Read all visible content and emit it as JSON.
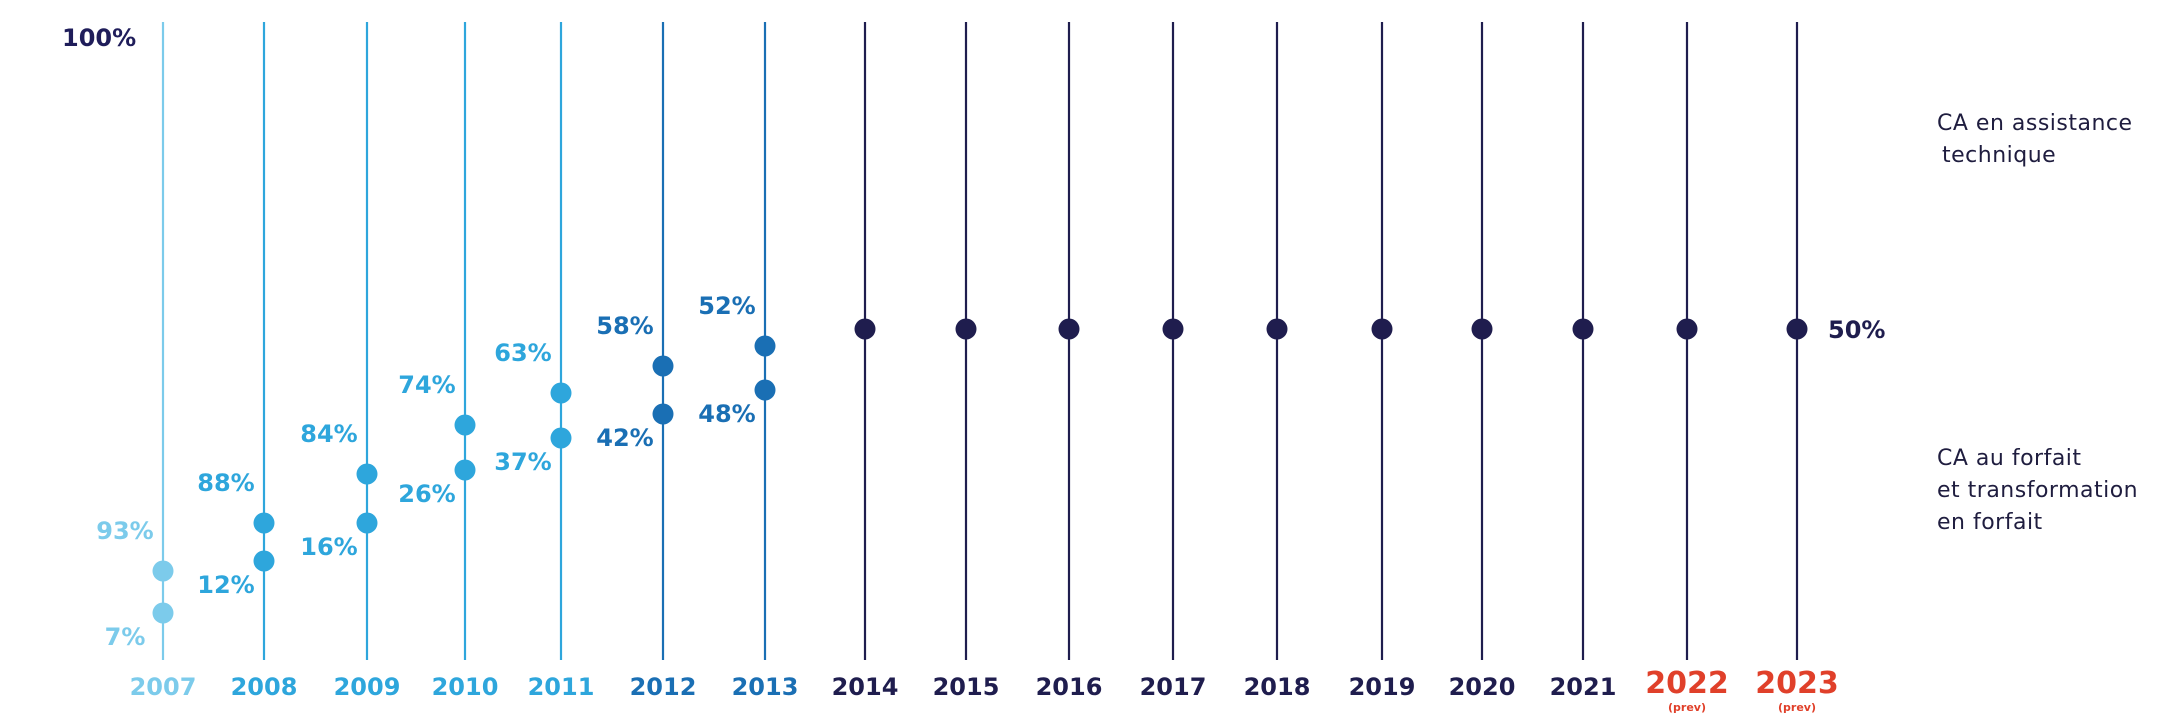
{
  "chart_data": {
    "type": "scatter",
    "top_label": "100%",
    "years": [
      {
        "label": "2007",
        "sub": "",
        "color": "#7ccbeb",
        "upper": 93,
        "lower": 7
      },
      {
        "label": "2008",
        "sub": "",
        "color": "#2ea6dc",
        "upper": 88,
        "lower": 12
      },
      {
        "label": "2009",
        "sub": "",
        "color": "#2ea6dc",
        "upper": 84,
        "lower": 16
      },
      {
        "label": "2010",
        "sub": "",
        "color": "#2ea6dc",
        "upper": 74,
        "lower": 26
      },
      {
        "label": "2011",
        "sub": "",
        "color": "#2ea6dc",
        "upper": 63,
        "lower": 37
      },
      {
        "label": "2012",
        "sub": "",
        "color": "#1a6fb4",
        "upper": 58,
        "lower": 42
      },
      {
        "label": "2013",
        "sub": "",
        "color": "#1a6fb4",
        "upper": 52,
        "lower": 48
      },
      {
        "label": "2014",
        "sub": "",
        "color": "#1f1d4e",
        "point": 50
      },
      {
        "label": "2015",
        "sub": "",
        "color": "#1f1d4e",
        "point": 50
      },
      {
        "label": "2016",
        "sub": "",
        "color": "#1f1d4e",
        "point": 50
      },
      {
        "label": "2017",
        "sub": "",
        "color": "#1f1d4e",
        "point": 50
      },
      {
        "label": "2018",
        "sub": "",
        "color": "#1f1d4e",
        "point": 50
      },
      {
        "label": "2019",
        "sub": "",
        "color": "#1f1d4e",
        "point": 50
      },
      {
        "label": "2020",
        "sub": "",
        "color": "#1f1d4e",
        "point": 50
      },
      {
        "label": "2021",
        "sub": "",
        "color": "#1f1d4e",
        "point": 50
      },
      {
        "label": "2022",
        "sub": "(prev)",
        "color": "#1f1d4e",
        "point": 50
      },
      {
        "label": "2023",
        "sub": "(prev)",
        "color": "#1f1d4e",
        "point": 50
      }
    ],
    "point_label": "50%",
    "forecast_color": "#e0402a",
    "dark_color": "#1f1d4e"
  },
  "legend": {
    "top_line1": "CA en assistance",
    "top_line2": "technique",
    "bottom_line1": "CA au forfait",
    "bottom_line2": "et transformation",
    "bottom_line3": "en forfait"
  }
}
